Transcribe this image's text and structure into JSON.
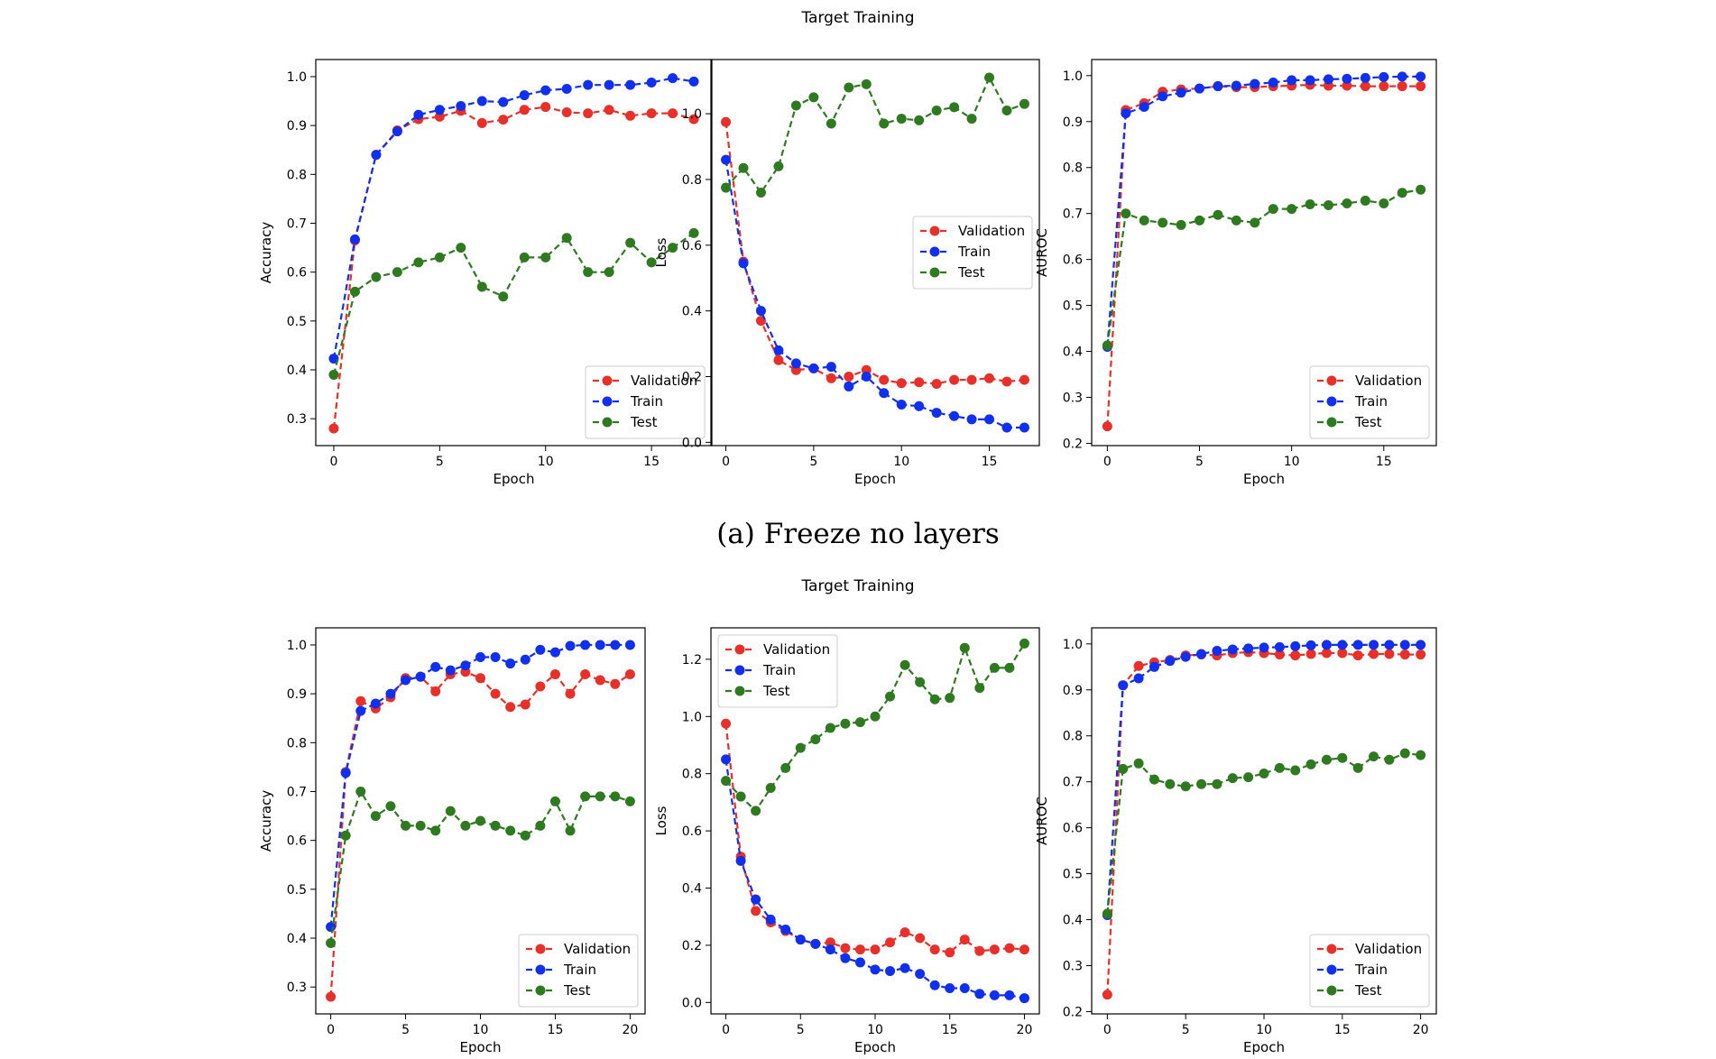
{
  "figure": {
    "suptitle_top": "Target Training",
    "caption_a": "(a) Freeze no layers",
    "suptitle_bottom": "Target Training"
  },
  "colors": {
    "Validation": "#e8302a",
    "Train": "#1030ee",
    "Test": "#2f7a20"
  },
  "chart_data": [
    {
      "id": "a-accuracy",
      "type": "line",
      "title": "",
      "xlabel": "Epoch",
      "ylabel": "Accuracy",
      "xlim": [
        -0.85,
        17.85
      ],
      "ylim": [
        0.245,
        1.035
      ],
      "xticks": [
        0,
        5,
        10,
        15
      ],
      "yticks": [
        0.3,
        0.4,
        0.5,
        0.6,
        0.7,
        0.8,
        0.9,
        1.0
      ],
      "legend": "lower-right",
      "x": [
        0,
        1,
        2,
        3,
        4,
        5,
        6,
        7,
        8,
        9,
        10,
        11,
        12,
        13,
        14,
        15,
        16,
        17
      ],
      "series": [
        {
          "name": "Validation",
          "values": [
            0.28,
            0.665,
            0.84,
            0.89,
            0.913,
            0.918,
            0.93,
            0.905,
            0.912,
            0.932,
            0.938,
            0.927,
            0.925,
            0.932,
            0.92,
            0.925,
            0.925,
            0.913
          ]
        },
        {
          "name": "Train",
          "values": [
            0.423,
            0.667,
            0.84,
            0.888,
            0.922,
            0.932,
            0.94,
            0.95,
            0.948,
            0.962,
            0.972,
            0.975,
            0.983,
            0.983,
            0.983,
            0.988,
            0.997,
            0.99
          ]
        },
        {
          "name": "Test",
          "values": [
            0.39,
            0.56,
            0.59,
            0.6,
            0.62,
            0.63,
            0.65,
            0.57,
            0.55,
            0.63,
            0.63,
            0.67,
            0.6,
            0.6,
            0.66,
            0.62,
            0.65,
            0.68
          ]
        }
      ]
    },
    {
      "id": "a-loss",
      "type": "line",
      "title": "",
      "xlabel": "Epoch",
      "ylabel": "Loss",
      "xlim": [
        -0.85,
        17.85
      ],
      "ylim": [
        -0.01,
        1.165
      ],
      "xticks": [
        0,
        5,
        10,
        15
      ],
      "yticks": [
        0.0,
        0.2,
        0.4,
        0.6,
        0.8,
        1.0
      ],
      "legend": "center-right",
      "x": [
        0,
        1,
        2,
        3,
        4,
        5,
        6,
        7,
        8,
        9,
        10,
        11,
        12,
        13,
        14,
        15,
        16,
        17
      ],
      "series": [
        {
          "name": "Validation",
          "values": [
            0.975,
            0.55,
            0.37,
            0.25,
            0.22,
            0.225,
            0.195,
            0.2,
            0.22,
            0.19,
            0.18,
            0.183,
            0.178,
            0.19,
            0.19,
            0.195,
            0.185,
            0.19
          ]
        },
        {
          "name": "Train",
          "values": [
            0.86,
            0.545,
            0.4,
            0.28,
            0.24,
            0.225,
            0.23,
            0.17,
            0.2,
            0.15,
            0.115,
            0.11,
            0.09,
            0.08,
            0.07,
            0.07,
            0.045,
            0.045
          ]
        },
        {
          "name": "Test",
          "values": [
            0.775,
            0.835,
            0.76,
            0.84,
            1.025,
            1.05,
            0.97,
            1.08,
            1.09,
            0.97,
            0.985,
            0.98,
            1.01,
            1.02,
            0.985,
            1.11,
            1.01,
            1.03
          ]
        }
      ]
    },
    {
      "id": "a-auroc",
      "type": "line",
      "title": "",
      "xlabel": "Epoch",
      "ylabel": "AUROC",
      "xlim": [
        -0.85,
        17.85
      ],
      "ylim": [
        0.195,
        1.035
      ],
      "xticks": [
        0,
        5,
        10,
        15
      ],
      "yticks": [
        0.2,
        0.3,
        0.4,
        0.5,
        0.6,
        0.7,
        0.8,
        0.9,
        1.0
      ],
      "legend": "lower-right",
      "x": [
        0,
        1,
        2,
        3,
        4,
        5,
        6,
        7,
        8,
        9,
        10,
        11,
        12,
        13,
        14,
        15,
        16,
        17
      ],
      "series": [
        {
          "name": "Validation",
          "values": [
            0.237,
            0.925,
            0.94,
            0.965,
            0.97,
            0.972,
            0.977,
            0.975,
            0.975,
            0.977,
            0.978,
            0.98,
            0.978,
            0.978,
            0.977,
            0.977,
            0.977,
            0.977
          ]
        },
        {
          "name": "Train",
          "values": [
            0.41,
            0.918,
            0.932,
            0.955,
            0.963,
            0.972,
            0.977,
            0.978,
            0.982,
            0.985,
            0.99,
            0.99,
            0.992,
            0.993,
            0.995,
            0.997,
            0.998,
            0.998
          ]
        },
        {
          "name": "Test",
          "values": [
            0.413,
            0.7,
            0.685,
            0.68,
            0.675,
            0.685,
            0.697,
            0.685,
            0.68,
            0.71,
            0.71,
            0.72,
            0.718,
            0.722,
            0.728,
            0.722,
            0.745,
            0.752
          ]
        }
      ]
    },
    {
      "id": "b-accuracy",
      "type": "line",
      "title": "",
      "xlabel": "Epoch",
      "ylabel": "Accuracy",
      "xlim": [
        -1.0,
        21.0
      ],
      "ylim": [
        0.245,
        1.035
      ],
      "xticks": [
        0,
        5,
        10,
        15,
        20
      ],
      "yticks": [
        0.3,
        0.4,
        0.5,
        0.6,
        0.7,
        0.8,
        0.9,
        1.0
      ],
      "legend": "lower-right",
      "x": [
        0,
        1,
        2,
        3,
        4,
        5,
        6,
        7,
        8,
        9,
        10,
        11,
        12,
        13,
        14,
        15,
        16,
        17,
        18,
        19,
        20
      ],
      "series": [
        {
          "name": "Validation",
          "values": [
            0.28,
            0.74,
            0.885,
            0.87,
            0.893,
            0.932,
            0.935,
            0.905,
            0.94,
            0.945,
            0.932,
            0.9,
            0.873,
            0.878,
            0.915,
            0.94,
            0.9,
            0.94,
            0.928,
            0.92,
            0.94
          ]
        },
        {
          "name": "Train",
          "values": [
            0.423,
            0.738,
            0.865,
            0.88,
            0.9,
            0.928,
            0.935,
            0.955,
            0.948,
            0.958,
            0.975,
            0.975,
            0.962,
            0.97,
            0.99,
            0.985,
            0.998,
            1.0,
            1.0,
            1.0,
            1.0
          ]
        },
        {
          "name": "Test",
          "values": [
            0.39,
            0.61,
            0.7,
            0.65,
            0.67,
            0.63,
            0.63,
            0.62,
            0.66,
            0.63,
            0.64,
            0.63,
            0.62,
            0.61,
            0.63,
            0.68,
            0.62,
            0.69,
            0.69,
            0.69,
            0.68
          ]
        }
      ]
    },
    {
      "id": "b-loss",
      "type": "line",
      "title": "",
      "xlabel": "Epoch",
      "ylabel": "Loss",
      "xlim": [
        -1.0,
        21.0
      ],
      "ylim": [
        -0.04,
        1.31
      ],
      "xticks": [
        0,
        5,
        10,
        15,
        20
      ],
      "yticks": [
        0.0,
        0.2,
        0.4,
        0.6,
        0.8,
        1.0,
        1.2
      ],
      "legend": "upper-left",
      "x": [
        0,
        1,
        2,
        3,
        4,
        5,
        6,
        7,
        8,
        9,
        10,
        11,
        12,
        13,
        14,
        15,
        16,
        17,
        18,
        19,
        20
      ],
      "series": [
        {
          "name": "Validation",
          "values": [
            0.975,
            0.51,
            0.32,
            0.28,
            0.25,
            0.22,
            0.205,
            0.21,
            0.19,
            0.185,
            0.185,
            0.21,
            0.245,
            0.225,
            0.185,
            0.175,
            0.22,
            0.18,
            0.185,
            0.19,
            0.185
          ]
        },
        {
          "name": "Train",
          "values": [
            0.85,
            0.495,
            0.36,
            0.29,
            0.255,
            0.22,
            0.205,
            0.185,
            0.155,
            0.14,
            0.115,
            0.11,
            0.12,
            0.1,
            0.06,
            0.05,
            0.05,
            0.03,
            0.025,
            0.025,
            0.015
          ]
        },
        {
          "name": "Test",
          "values": [
            0.775,
            0.72,
            0.67,
            0.75,
            0.82,
            0.89,
            0.92,
            0.96,
            0.975,
            0.98,
            1.0,
            1.07,
            1.18,
            1.12,
            1.06,
            1.065,
            1.24,
            1.1,
            1.17,
            1.17,
            1.255
          ]
        }
      ]
    },
    {
      "id": "b-auroc",
      "type": "line",
      "title": "",
      "xlabel": "Epoch",
      "ylabel": "AUROC",
      "xlim": [
        -1.0,
        21.0
      ],
      "ylim": [
        0.195,
        1.035
      ],
      "xticks": [
        0,
        5,
        10,
        15,
        20
      ],
      "yticks": [
        0.2,
        0.3,
        0.4,
        0.5,
        0.6,
        0.7,
        0.8,
        0.9,
        1.0
      ],
      "legend": "lower-right",
      "x": [
        0,
        1,
        2,
        3,
        4,
        5,
        6,
        7,
        8,
        9,
        10,
        11,
        12,
        13,
        14,
        15,
        16,
        17,
        18,
        19,
        20
      ],
      "series": [
        {
          "name": "Validation",
          "values": [
            0.237,
            0.91,
            0.952,
            0.96,
            0.965,
            0.975,
            0.977,
            0.975,
            0.98,
            0.982,
            0.98,
            0.977,
            0.975,
            0.978,
            0.98,
            0.98,
            0.975,
            0.978,
            0.978,
            0.977,
            0.977
          ]
        },
        {
          "name": "Train",
          "values": [
            0.41,
            0.91,
            0.925,
            0.95,
            0.963,
            0.972,
            0.978,
            0.985,
            0.988,
            0.99,
            0.992,
            0.993,
            0.995,
            0.997,
            0.998,
            0.998,
            0.998,
            0.998,
            0.998,
            0.998,
            0.998
          ]
        },
        {
          "name": "Test",
          "values": [
            0.413,
            0.728,
            0.74,
            0.705,
            0.695,
            0.69,
            0.695,
            0.695,
            0.708,
            0.71,
            0.718,
            0.73,
            0.725,
            0.738,
            0.748,
            0.752,
            0.73,
            0.755,
            0.748,
            0.762,
            0.758
          ]
        }
      ]
    }
  ]
}
